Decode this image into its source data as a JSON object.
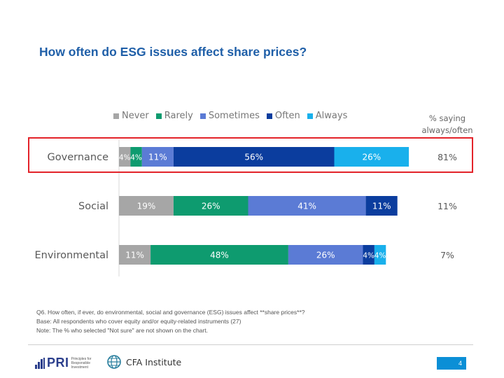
{
  "title": "How often do ESG issues affect share prices?",
  "pct_header": "% saying always/often",
  "chart_data": {
    "type": "bar",
    "orientation": "horizontal-stacked",
    "categories": [
      "Governance",
      "Social",
      "Environmental"
    ],
    "series": [
      {
        "name": "Never",
        "color": "#a6a6a6",
        "values": [
          4,
          19,
          11
        ],
        "labels": [
          "4%",
          "19%",
          "11%"
        ]
      },
      {
        "name": "Rarely",
        "color": "#0e9b6f",
        "values": [
          4,
          26,
          48
        ],
        "labels": [
          "4%",
          "26%",
          "48%"
        ]
      },
      {
        "name": "Sometimes",
        "color": "#5b7bd5",
        "values": [
          11,
          41,
          26
        ],
        "labels": [
          "11%",
          "41%",
          "26%"
        ]
      },
      {
        "name": "Often",
        "color": "#0b3d9e",
        "values": [
          56,
          11,
          4
        ],
        "labels": [
          "56%",
          "11%",
          "4%"
        ]
      },
      {
        "name": "Always",
        "color": "#19b0ec",
        "values": [
          26,
          0,
          4
        ],
        "labels": [
          "26%",
          "",
          "4%"
        ]
      }
    ],
    "always_often": [
      "81%",
      "11%",
      "7%"
    ],
    "legend_position": "top",
    "highlighted_category": "Governance"
  },
  "notes": [
    "Q6. How often, if ever, do environmental, social and governance (ESG) issues affect **share prices**?",
    "Base: All respondents who cover equity and/or equity-related instruments (27)",
    "Note: The % who selected \"Not sure\" are not shown on the chart."
  ],
  "footer": {
    "pri_label": "PRI",
    "pri_sub": "Principles for Responsible Investment",
    "cfa_label": "CFA Institute",
    "page_number": "4"
  }
}
